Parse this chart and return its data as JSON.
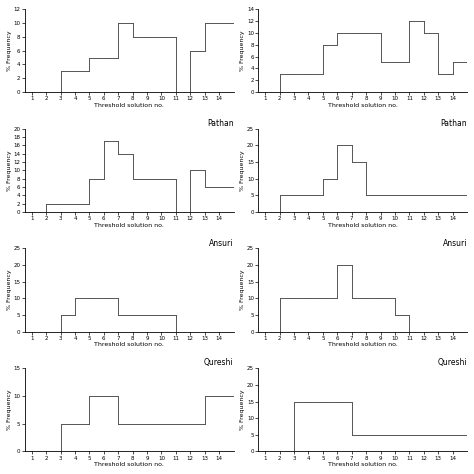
{
  "panels": [
    {
      "title": "",
      "ylabel": "% Frequency",
      "xlabel": "Threshold solution no.",
      "ylim": [
        0,
        12
      ],
      "yticks": [
        0,
        2,
        4,
        6,
        8,
        10,
        12
      ],
      "values": [
        0,
        0,
        3,
        3,
        5,
        5,
        10,
        8,
        8,
        8,
        0,
        6,
        10,
        10
      ],
      "row": 0,
      "col": 0
    },
    {
      "title": "",
      "ylabel": "% Frequency",
      "xlabel": "Threshold solution no.",
      "ylim": [
        0,
        14
      ],
      "yticks": [
        0,
        2,
        4,
        6,
        8,
        10,
        12,
        14
      ],
      "values": [
        0,
        3,
        3,
        3,
        8,
        10,
        10,
        10,
        5,
        5,
        12,
        10,
        3,
        5
      ],
      "row": 0,
      "col": 1
    },
    {
      "title": "Pathan",
      "ylabel": "% Frequency",
      "xlabel": "Threshold solution no.",
      "ylim": [
        0,
        20
      ],
      "yticks": [
        0,
        2,
        4,
        6,
        8,
        10,
        12,
        14,
        16,
        18,
        20
      ],
      "values": [
        0,
        2,
        2,
        2,
        8,
        17,
        14,
        8,
        8,
        8,
        0,
        10,
        6,
        6
      ],
      "row": 1,
      "col": 0
    },
    {
      "title": "Pathan",
      "ylabel": "% Frequency",
      "xlabel": "Threshold solution no.",
      "ylim": [
        0,
        25
      ],
      "yticks": [
        0,
        5,
        10,
        15,
        20,
        25
      ],
      "values": [
        0,
        5,
        5,
        5,
        10,
        20,
        15,
        5,
        5,
        5,
        5,
        5,
        5,
        5
      ],
      "row": 1,
      "col": 1
    },
    {
      "title": "Ansuri",
      "ylabel": "% Frequency",
      "xlabel": "Threshold solution no.",
      "ylim": [
        0,
        25
      ],
      "yticks": [
        0,
        5,
        10,
        15,
        20,
        25
      ],
      "values": [
        0,
        0,
        5,
        10,
        10,
        10,
        5,
        5,
        5,
        5,
        0,
        0,
        0,
        0
      ],
      "row": 2,
      "col": 0
    },
    {
      "title": "Ansuri",
      "ylabel": "% Frequency",
      "xlabel": "Threshold solution no.",
      "ylim": [
        0,
        25
      ],
      "yticks": [
        0,
        5,
        10,
        15,
        20,
        25
      ],
      "values": [
        0,
        10,
        10,
        10,
        10,
        20,
        10,
        10,
        10,
        5,
        0,
        0,
        0,
        0
      ],
      "row": 2,
      "col": 1
    },
    {
      "title": "Qureshi",
      "ylabel": "% Frequency",
      "xlabel": "Threshold solution no.",
      "ylim": [
        0,
        15
      ],
      "yticks": [
        0,
        5,
        10,
        15
      ],
      "values": [
        0,
        0,
        5,
        5,
        10,
        10,
        5,
        5,
        5,
        5,
        5,
        5,
        10,
        10
      ],
      "row": 3,
      "col": 0
    },
    {
      "title": "Qureshi",
      "ylabel": "% Frequency",
      "xlabel": "Threshold solution no.",
      "ylim": [
        0,
        25
      ],
      "yticks": [
        0,
        5,
        10,
        15,
        20,
        25
      ],
      "values": [
        0,
        0,
        15,
        15,
        15,
        15,
        5,
        5,
        5,
        5,
        5,
        5,
        5,
        5
      ],
      "row": 3,
      "col": 1
    }
  ],
  "nrows": 4,
  "ncols": 2,
  "background": "#ffffff",
  "line_color": "#555555"
}
